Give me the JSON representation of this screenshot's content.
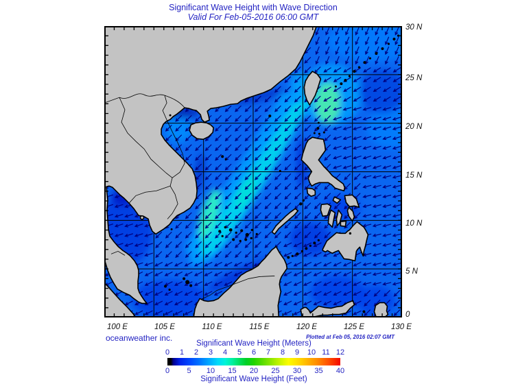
{
  "title": "Significant Wave Height with Wave Direction",
  "subtitle": "Valid For Feb-05-2016 06:00 GMT",
  "credit": "oceanweather inc.",
  "plotted_at": "Plotted at Feb 05, 2016 02:07 GMT",
  "map": {
    "lon_labels": [
      "100 E",
      "105 E",
      "110 E",
      "115 E",
      "120 E",
      "125 E",
      "130 E"
    ],
    "lat_labels": [
      "30 N",
      "25 N",
      "20 N",
      "15 N",
      "10 N",
      "5 N",
      "0"
    ],
    "lon_range_deg": [
      100,
      130
    ],
    "lat_range_deg": [
      0,
      30
    ],
    "grid_step_deg": 5,
    "tick_step_deg": 1,
    "land_color": "#c3c3c3",
    "coast_color": "#000000",
    "sea_base_color": "#0a66f0",
    "grid_color": "#000000",
    "arrow_color": "#000080",
    "wave_direction_rules": [
      {
        "region": "gulf-of-thailand",
        "lon": [
          99.5,
          104.8
        ],
        "lat": [
          5.5,
          13.8
        ],
        "toward_deg": 252
      },
      {
        "region": "east-china-sea",
        "lon": [
          121.3,
          130.5
        ],
        "lat": [
          26,
          30.5
        ],
        "toward_deg": 203
      },
      {
        "region": "ryukyu-east",
        "lon": [
          121.8,
          130.5
        ],
        "lat": [
          22.5,
          26
        ],
        "toward_deg": 238
      },
      {
        "region": "luzon-strait-east",
        "lon": [
          123.5,
          130.5
        ],
        "lat": [
          15,
          22.5
        ],
        "toward_deg": 252
      },
      {
        "region": "philippine-sea",
        "lon": [
          125.8,
          130.5
        ],
        "lat": [
          3,
          15
        ],
        "toward_deg": 256
      },
      {
        "region": "sulu-celebes-sea",
        "lon": [
          118,
          125.8
        ],
        "lat": [
          -0.5,
          8
        ],
        "toward_deg": 244
      },
      {
        "region": "southern-south-china-sea",
        "lon": [
          99.5,
          118
        ],
        "lat": [
          -0.5,
          5.5
        ],
        "toward_deg": 243
      },
      {
        "region": "south-china-sea",
        "lon": [
          99.5,
          130.5
        ],
        "lat": [
          -0.5,
          30.5
        ],
        "toward_deg": 225
      }
    ]
  },
  "colorbar": {
    "title_meters": "Significant Wave Height (Meters)",
    "title_feet": "Significant Wave Height (Feet)",
    "meter_ticks": [
      "0",
      "1",
      "2",
      "3",
      "4",
      "5",
      "6",
      "7",
      "8",
      "9",
      "10",
      "11",
      "12"
    ],
    "feet_ticks": [
      "0",
      "5",
      "10",
      "15",
      "20",
      "25",
      "30",
      "35",
      "40"
    ],
    "gradient": [
      [
        "#000000",
        0
      ],
      [
        "#000000",
        2
      ],
      [
        "#000090",
        3.5
      ],
      [
        "#0020e8",
        7
      ],
      [
        "#0048ff",
        13
      ],
      [
        "#0078ff",
        19
      ],
      [
        "#00a8ff",
        24
      ],
      [
        "#00d8fa",
        29
      ],
      [
        "#00f4d8",
        33.5
      ],
      [
        "#00f0a0",
        37.5
      ],
      [
        "#00e060",
        41.5
      ],
      [
        "#00d028",
        45.5
      ],
      [
        "#20d400",
        50
      ],
      [
        "#58dc00",
        55
      ],
      [
        "#90e800",
        60
      ],
      [
        "#c8f400",
        65
      ],
      [
        "#fcfc00",
        70
      ],
      [
        "#ffd800",
        76
      ],
      [
        "#ffb000",
        81.5
      ],
      [
        "#ff8800",
        87
      ],
      [
        "#ff5000",
        93
      ],
      [
        "#f40800",
        100
      ]
    ]
  },
  "colors": {
    "heading_text": "#2323c2",
    "axis_text": "#111111"
  }
}
